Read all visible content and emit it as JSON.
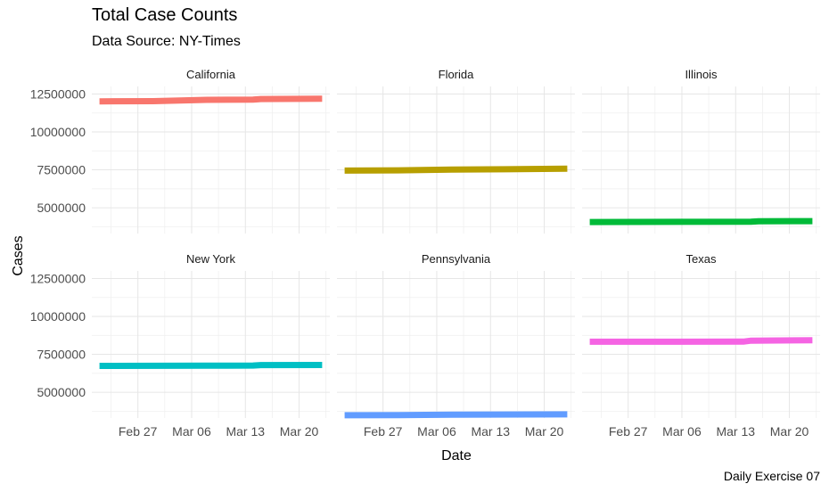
{
  "chart_data": {
    "type": "line",
    "title": "Total Case Counts",
    "subtitle": "Data Source: NY-Times",
    "xlabel": "Date",
    "ylabel": "Cases",
    "caption": "Daily Exercise 07",
    "x_ticks": [
      "Feb 27",
      "Mar 06",
      "Mar 13",
      "Mar 20"
    ],
    "y_ticks": [
      "5000000",
      "7500000",
      "10000000",
      "12500000"
    ],
    "ylim": [
      3300000,
      13000000
    ],
    "xlim": [
      "2022-02-21",
      "2022-03-24"
    ],
    "grid": true,
    "legend": "none",
    "panels": [
      {
        "name": "California",
        "color": "#F8766D",
        "x": [
          "2022-02-22",
          "2022-03-01",
          "2022-03-08",
          "2022-03-14",
          "2022-03-15",
          "2022-03-23"
        ],
        "y": [
          12020000,
          12030000,
          12120000,
          12130000,
          12170000,
          12190000
        ]
      },
      {
        "name": "Florida",
        "color": "#B79F00",
        "x": [
          "2022-02-22",
          "2022-03-01",
          "2022-03-08",
          "2022-03-15",
          "2022-03-23"
        ],
        "y": [
          7450000,
          7470000,
          7520000,
          7540000,
          7580000
        ]
      },
      {
        "name": "Illinois",
        "color": "#00BA38",
        "x": [
          "2022-02-22",
          "2022-03-15",
          "2022-03-16",
          "2022-03-23"
        ],
        "y": [
          4060000,
          4080000,
          4110000,
          4120000
        ]
      },
      {
        "name": "New York",
        "color": "#00BFC4",
        "x": [
          "2022-02-22",
          "2022-03-08",
          "2022-03-14",
          "2022-03-15",
          "2022-03-23"
        ],
        "y": [
          6740000,
          6750000,
          6760000,
          6790000,
          6800000
        ]
      },
      {
        "name": "Pennsylvania",
        "color": "#619CFF",
        "x": [
          "2022-02-22",
          "2022-03-01",
          "2022-03-08",
          "2022-03-23"
        ],
        "y": [
          3480000,
          3490000,
          3520000,
          3540000
        ]
      },
      {
        "name": "Texas",
        "color": "#F564E3",
        "x": [
          "2022-02-22",
          "2022-03-14",
          "2022-03-15",
          "2022-03-23"
        ],
        "y": [
          8330000,
          8340000,
          8400000,
          8430000
        ]
      }
    ]
  }
}
